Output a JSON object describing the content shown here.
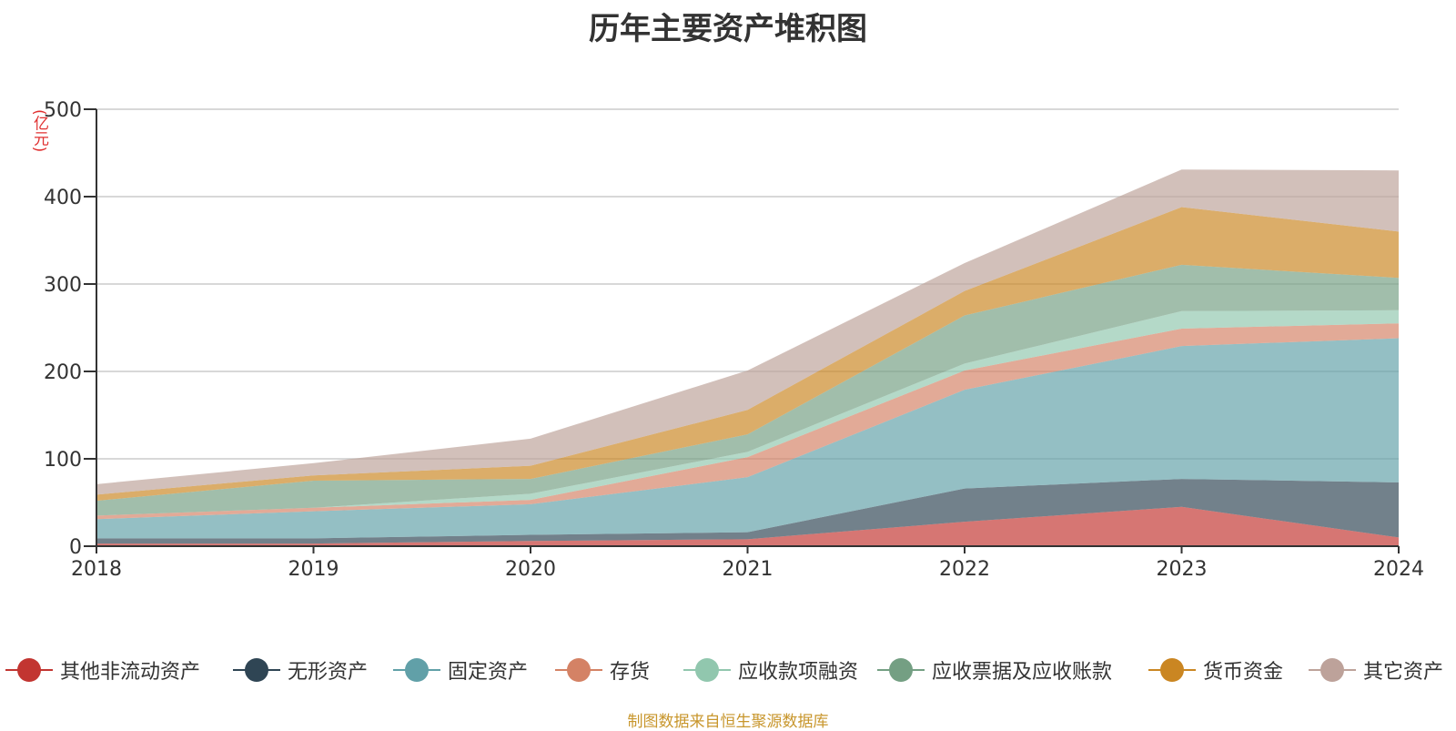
{
  "chart_data": {
    "type": "area",
    "stacked": true,
    "title": "历年主要资产堆积图",
    "unit": "(亿元)",
    "x": [
      "2018",
      "2019",
      "2020",
      "2021",
      "2022",
      "2023",
      "2024"
    ],
    "ylim": [
      0,
      500
    ],
    "yticks": [
      0,
      100,
      200,
      300,
      400,
      500
    ],
    "grid": true,
    "legend_position": "bottom",
    "series": [
      {
        "name": "其他非流动资产",
        "color": "#c23531",
        "values": [
          3,
          3,
          6,
          8,
          28,
          45,
          10
        ]
      },
      {
        "name": "无形资产",
        "color": "#2f4554",
        "values": [
          6,
          6,
          7,
          8,
          38,
          32,
          63
        ]
      },
      {
        "name": "固定资产",
        "color": "#61a0a8",
        "values": [
          22,
          31,
          35,
          63,
          113,
          152,
          165
        ]
      },
      {
        "name": "存货",
        "color": "#d48265",
        "values": [
          4,
          4,
          5,
          23,
          22,
          20,
          17
        ]
      },
      {
        "name": "应收款项融资",
        "color": "#91c7ae",
        "values": [
          0,
          0,
          7,
          6,
          8,
          20,
          15
        ]
      },
      {
        "name": "应收票据及应收账款",
        "color": "#749f83",
        "values": [
          17,
          31,
          17,
          20,
          55,
          53,
          37
        ]
      },
      {
        "name": "货币资金",
        "color": "#ca8622",
        "values": [
          7,
          6,
          15,
          28,
          28,
          66,
          53
        ]
      },
      {
        "name": "其它资产",
        "color": "#bda29a",
        "values": [
          12,
          14,
          31,
          45,
          32,
          43,
          70
        ]
      }
    ],
    "source_note": "制图数据来自恒生聚源数据库"
  }
}
